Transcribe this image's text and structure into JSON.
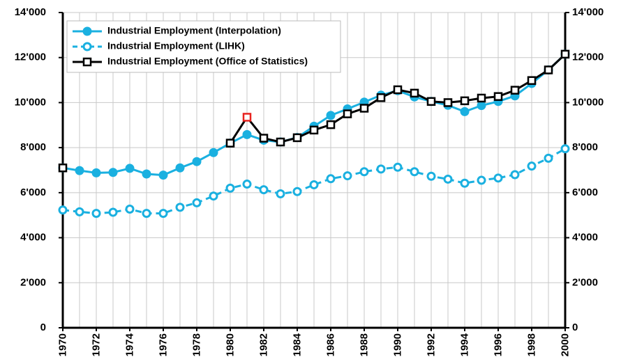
{
  "chart_data": {
    "type": "line",
    "x": [
      1970,
      1971,
      1972,
      1973,
      1974,
      1975,
      1976,
      1977,
      1978,
      1979,
      1980,
      1981,
      1982,
      1983,
      1984,
      1985,
      1986,
      1987,
      1988,
      1989,
      1990,
      1991,
      1992,
      1993,
      1994,
      1995,
      1996,
      1997,
      1998,
      1999,
      2000
    ],
    "xlim": [
      1970,
      2000
    ],
    "xticks": [
      1970,
      1972,
      1974,
      1976,
      1978,
      1980,
      1982,
      1984,
      1986,
      1988,
      1990,
      1992,
      1994,
      1996,
      1998,
      2000
    ],
    "ylim": [
      0,
      14000
    ],
    "yticks": [
      0,
      {
        "value": 2000,
        "label": "2'000"
      },
      {
        "value": 4000,
        "label": "4'000"
      },
      {
        "value": 6000,
        "label": "6'000"
      },
      {
        "value": 8000,
        "label": "8'000"
      },
      {
        "value": 10000,
        "label": "10'000"
      },
      {
        "value": 12000,
        "label": "12'000"
      },
      {
        "value": 14000,
        "label": "14'000"
      }
    ],
    "y2lim": [
      0,
      14000
    ],
    "y2ticks": [
      0,
      {
        "value": 2000,
        "label": "2'000"
      },
      {
        "value": 4000,
        "label": "4'000"
      },
      {
        "value": 6000,
        "label": "6'000"
      },
      {
        "value": 8000,
        "label": "8'000"
      },
      {
        "value": 10000,
        "label": "10'000"
      },
      {
        "value": 12000,
        "label": "12'000"
      },
      {
        "value": 14000,
        "label": "14'000"
      }
    ],
    "grid": true,
    "legend": "top-left",
    "series": [
      {
        "name": "Industrial Employment (Interpolation)",
        "color": "#1ab0e0",
        "style": "solid",
        "marker": "filled-circle",
        "values": [
          7100,
          6980,
          6880,
          6900,
          7080,
          6830,
          6780,
          7100,
          7380,
          7780,
          8200,
          8580,
          8330,
          8250,
          8450,
          8950,
          9430,
          9720,
          10020,
          10330,
          10530,
          10250,
          10050,
          9880,
          9600,
          9870,
          10050,
          10300,
          10850,
          11450,
          12150
        ]
      },
      {
        "name": "Industrial Employment (LIHK)",
        "color": "#1ab0e0",
        "style": "dashed",
        "marker": "open-circle",
        "values": [
          5230,
          5150,
          5080,
          5130,
          5270,
          5080,
          5080,
          5350,
          5550,
          5850,
          6200,
          6380,
          6130,
          5950,
          6050,
          6350,
          6620,
          6750,
          6930,
          7050,
          7130,
          6930,
          6730,
          6600,
          6420,
          6550,
          6650,
          6800,
          7180,
          7530,
          7950
        ]
      },
      {
        "name": "Industrial Employment (Office of Statistics)",
        "color": "#000000",
        "style": "solid",
        "marker": "open-square",
        "highlight": {
          "index": 11,
          "color": "#e8231f"
        },
        "values": [
          7100,
          null,
          null,
          null,
          null,
          null,
          null,
          null,
          null,
          null,
          8200,
          9350,
          8420,
          8250,
          8440,
          8780,
          9020,
          9500,
          9750,
          10220,
          10570,
          10420,
          10050,
          10000,
          10080,
          10200,
          10270,
          10550,
          10980,
          11450,
          12150
        ]
      }
    ]
  }
}
